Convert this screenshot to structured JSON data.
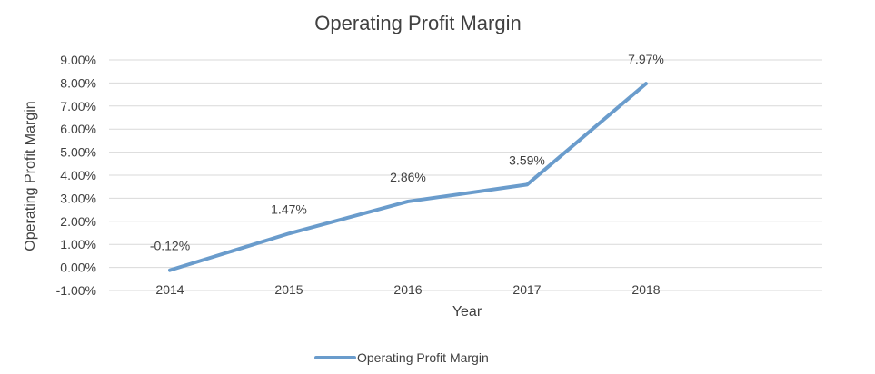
{
  "chart_data": {
    "type": "line",
    "title": "Operating Profit Margin",
    "xlabel": "Year",
    "ylabel": "Operating Profit Margin",
    "categories": [
      "2014",
      "2015",
      "2016",
      "2017",
      "2018"
    ],
    "series": [
      {
        "name": "Operating Profit Margin",
        "values": [
          -0.12,
          1.47,
          2.86,
          3.59,
          7.97
        ],
        "labels": [
          "-0.12%",
          "1.47%",
          "2.86%",
          "3.59%",
          "7.97%"
        ],
        "color": "#6a9ccc"
      }
    ],
    "ylim": [
      -1,
      9
    ],
    "yticks": [
      "-1.00%",
      "0.00%",
      "1.00%",
      "2.00%",
      "3.00%",
      "4.00%",
      "5.00%",
      "6.00%",
      "7.00%",
      "8.00%",
      "9.00%"
    ],
    "grid": true,
    "legend_position": "bottom"
  }
}
